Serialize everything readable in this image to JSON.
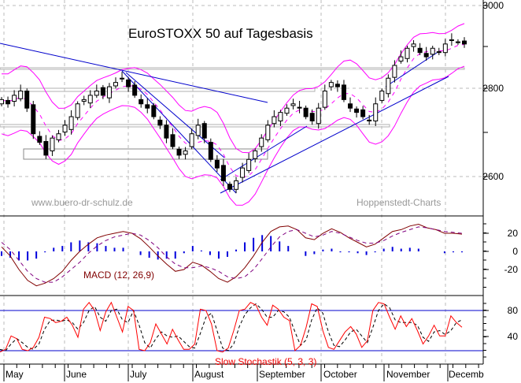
{
  "chart_data": [
    {
      "type": "candlestick",
      "title": "EuroSTOXX 50 auf Tagesbasis",
      "xlabel": "",
      "ylabel": "",
      "ylim": [
        2510,
        3010
      ],
      "y_ticks": [
        2600,
        2800,
        3000
      ],
      "x_ticks": [
        "May",
        "June",
        "July",
        "August",
        "September",
        "October",
        "November",
        "Decemb"
      ],
      "grid": true,
      "overlays": [
        "Bollinger Bands (magenta)",
        "Moving average (magenta dashed)",
        "Trend lines (blue)",
        "Support/resistance zones (gray)"
      ],
      "annotations": [
        "www.buero-dr-schulz.de",
        "Hoppenstedt-Charts"
      ],
      "approx_close": {
        "May": [
          2780,
          2770,
          2790,
          2800,
          2760,
          2700,
          2680,
          2650,
          2690,
          2700
        ],
        "June": [
          2720,
          2740,
          2770,
          2780,
          2790,
          2800,
          2790,
          2810,
          2820,
          2830
        ],
        "July": [
          2810,
          2790,
          2770,
          2760,
          2740,
          2720,
          2690,
          2670,
          2650,
          2660
        ],
        "August": [
          2700,
          2720,
          2690,
          2640,
          2620,
          2590,
          2570,
          2590,
          2620,
          2640
        ],
        "September": [
          2660,
          2690,
          2720,
          2740,
          2750,
          2760,
          2770,
          2760,
          2740,
          2730
        ],
        "October": [
          2760,
          2800,
          2820,
          2810,
          2780,
          2760,
          2750,
          2740,
          2730,
          2770
        ],
        "November": [
          2800,
          2830,
          2860,
          2880,
          2900,
          2910,
          2890,
          2880,
          2900,
          2890
        ],
        "December": [
          2910,
          2920,
          2915,
          2910
        ]
      }
    },
    {
      "type": "line",
      "title": "MACD (12, 26,9)",
      "ylim": [
        -40,
        30
      ],
      "y_ticks": [
        20,
        0,
        -20
      ],
      "series": [
        {
          "name": "MACD",
          "values": [
            5,
            -5,
            -20,
            -32,
            -38,
            -35,
            -30,
            -22,
            -10,
            0,
            8,
            15,
            18,
            20,
            22,
            20,
            14,
            5,
            -5,
            -14,
            -22,
            -20,
            -12,
            -15,
            -22,
            -30,
            -34,
            -28,
            -18,
            -5,
            10,
            22,
            27,
            28,
            24,
            15,
            13,
            20,
            25,
            21,
            15,
            10,
            5,
            8,
            15,
            22,
            24,
            28,
            30,
            26,
            24,
            20,
            20,
            19
          ]
        },
        {
          "name": "Signal",
          "values": [
            10,
            2,
            -10,
            -22,
            -30,
            -34,
            -34,
            -28,
            -20,
            -12,
            -2,
            6,
            12,
            16,
            18,
            20,
            18,
            12,
            4,
            -6,
            -14,
            -18,
            -18,
            -16,
            -18,
            -22,
            -28,
            -30,
            -28,
            -20,
            -8,
            5,
            16,
            22,
            24,
            20,
            16,
            18,
            22,
            20,
            16,
            12,
            9,
            9,
            12,
            17,
            21,
            24,
            27,
            26,
            24,
            22,
            21,
            20
          ]
        },
        {
          "name": "Histogram",
          "values": [
            -5,
            -7,
            -10,
            -10,
            -8,
            -1,
            4,
            6,
            10,
            12,
            10,
            9,
            6,
            4,
            4,
            0,
            -4,
            -7,
            -9,
            -8,
            -8,
            -2,
            6,
            1,
            -4,
            -8,
            -6,
            2,
            10,
            15,
            18,
            17,
            11,
            6,
            0,
            -5,
            -3,
            2,
            3,
            -1,
            -1,
            -2,
            -4,
            -1,
            3,
            5,
            3,
            4,
            3,
            0,
            0,
            -2,
            -1,
            -1
          ]
        }
      ]
    },
    {
      "type": "line",
      "title": "Slow Stochastik (5, 3, 3)",
      "ylim": [
        0,
        100
      ],
      "y_ticks": [
        80,
        40
      ],
      "reference_lines": [
        80,
        20
      ],
      "series": [
        {
          "name": "%K",
          "values": [
            18,
            22,
            42,
            38,
            22,
            20,
            25,
            40,
            70,
            68,
            62,
            64,
            70,
            58,
            40,
            82,
            92,
            80,
            50,
            78,
            92,
            70,
            48,
            86,
            80,
            22,
            20,
            32,
            60,
            45,
            30,
            52,
            36,
            22,
            22,
            30,
            82,
            80,
            60,
            20,
            18,
            24,
            50,
            80,
            82,
            92,
            88,
            70,
            58,
            88,
            82,
            70,
            65,
            20,
            28,
            55,
            90,
            86,
            50,
            25,
            22,
            35,
            48,
            56,
            45,
            25,
            35,
            80,
            92,
            90,
            70,
            52,
            72,
            56,
            68,
            50,
            30,
            42,
            58,
            42,
            42,
            72,
            62,
            55
          ]
        },
        {
          "name": "%D",
          "values": [
            22,
            20,
            30,
            38,
            32,
            25,
            22,
            30,
            52,
            65,
            66,
            64,
            66,
            62,
            52,
            62,
            80,
            86,
            70,
            64,
            80,
            82,
            66,
            62,
            80,
            58,
            32,
            24,
            38,
            48,
            42,
            40,
            42,
            34,
            26,
            24,
            46,
            70,
            76,
            50,
            24,
            20,
            30,
            56,
            74,
            84,
            90,
            82,
            70,
            70,
            80,
            78,
            70,
            48,
            28,
            36,
            66,
            84,
            76,
            48,
            28,
            26,
            36,
            48,
            52,
            42,
            32,
            55,
            80,
            90,
            84,
            66,
            62,
            62,
            62,
            58,
            40,
            34,
            48,
            50,
            44,
            50,
            62,
            66
          ]
        }
      ]
    }
  ],
  "main_panel": {
    "title": "EuroSTOXX 50 auf Tagesbasis",
    "watermark_left": "www.buero-dr-schulz.de",
    "watermark_right": "Hoppenstedt-Charts",
    "y_labels": [
      "3000",
      "2800",
      "2600"
    ]
  },
  "macd_panel": {
    "label": "MACD (12, 26,9)",
    "y_labels": [
      "20",
      "0",
      "-20"
    ]
  },
  "stoch_panel": {
    "label": "Slow Stochastik (5, 3, 3)",
    "y_labels": [
      "80",
      "40"
    ]
  },
  "x_axis": {
    "months": [
      "May",
      "June",
      "July",
      "August",
      "September",
      "October",
      "November",
      "Decemb"
    ]
  },
  "colors": {
    "candles": "#000000",
    "bollinger": "#ff00ff",
    "trendline": "#0000cc",
    "zones": "#b0b0b0",
    "macd_line": "#800000",
    "signal_line": "#800080",
    "histogram": "#0000dd",
    "stoch_k": "#ff0000",
    "stoch_d": "#000000",
    "ref_lines": "#0000cc",
    "grid": "#bbbbbb"
  }
}
